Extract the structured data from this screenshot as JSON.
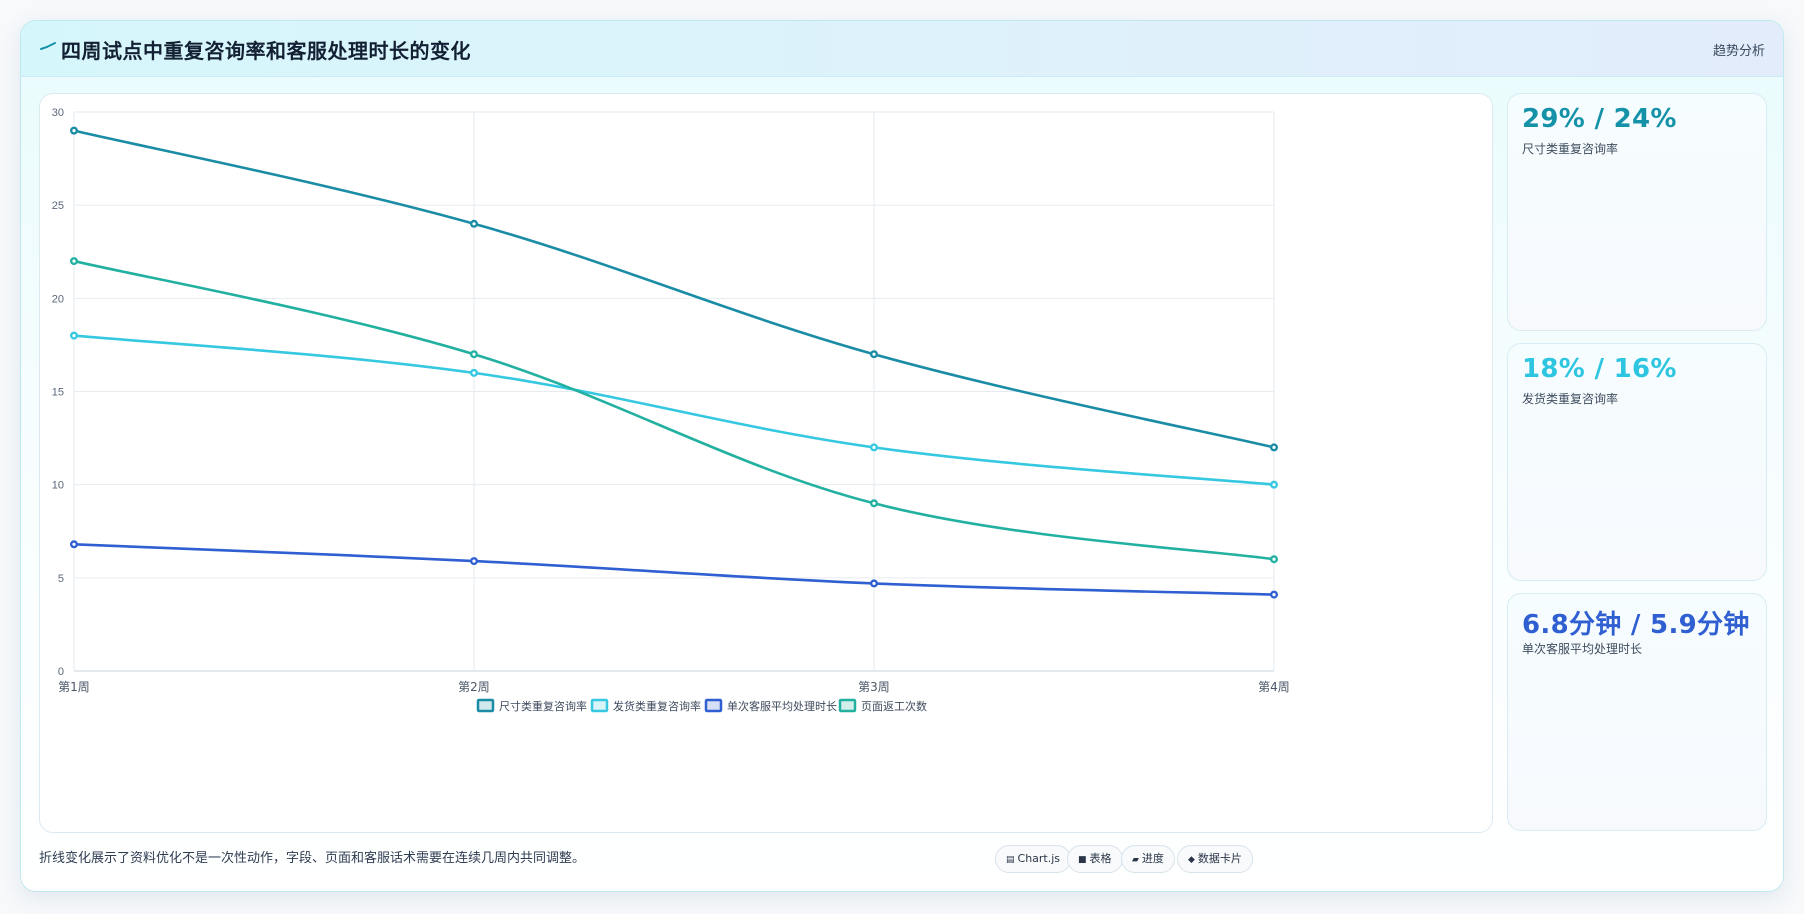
{
  "header": {
    "title": "四周试点中重复咨询率和客服处理时长的变化",
    "tag": "趋势分析"
  },
  "stats": [
    {
      "value": "29% / 24%",
      "label": "尺寸类重复咨询率",
      "color": "#1592a8"
    },
    {
      "value": "18% / 16%",
      "label": "发货类重复咨询率",
      "color": "#2ec5e0"
    },
    {
      "value": "6.8分钟 / 5.9分钟",
      "label": "单次客服平均处理时长",
      "color": "#2f5fd0"
    }
  ],
  "footer": {
    "note": "折线变化展示了资料优化不是一次性动作，字段、页面和客服话术需要在连续几周内共同调整。",
    "badges": [
      {
        "icon": "chart-icon",
        "glyph": "▤",
        "label": "Chart.js"
      },
      {
        "icon": "table-icon",
        "glyph": "■",
        "label": "表格"
      },
      {
        "icon": "progress-icon",
        "glyph": "▰",
        "label": "进度"
      },
      {
        "icon": "card-icon",
        "glyph": "◆",
        "label": "数据卡片"
      }
    ]
  },
  "chart_data": {
    "type": "line",
    "categories": [
      "第1周",
      "第2周",
      "第3周",
      "第4周"
    ],
    "ylim": [
      0,
      30
    ],
    "yticks": [
      0,
      5,
      10,
      15,
      20,
      25,
      30
    ],
    "grid": true,
    "legend_position": "bottom",
    "series": [
      {
        "name": "尺寸类重复咨询率",
        "values": [
          29,
          24,
          17,
          12
        ],
        "color": "#1a8ca5"
      },
      {
        "name": "发货类重复咨询率",
        "values": [
          18,
          16,
          12,
          10
        ],
        "color": "#35c8e0"
      },
      {
        "name": "单次客服平均处理时长",
        "values": [
          6.8,
          5.9,
          4.7,
          4.1
        ],
        "color": "#2f5fd0"
      },
      {
        "name": "页面返工次数",
        "values": [
          22,
          17,
          9,
          6
        ],
        "color": "#22b0a0"
      }
    ]
  }
}
